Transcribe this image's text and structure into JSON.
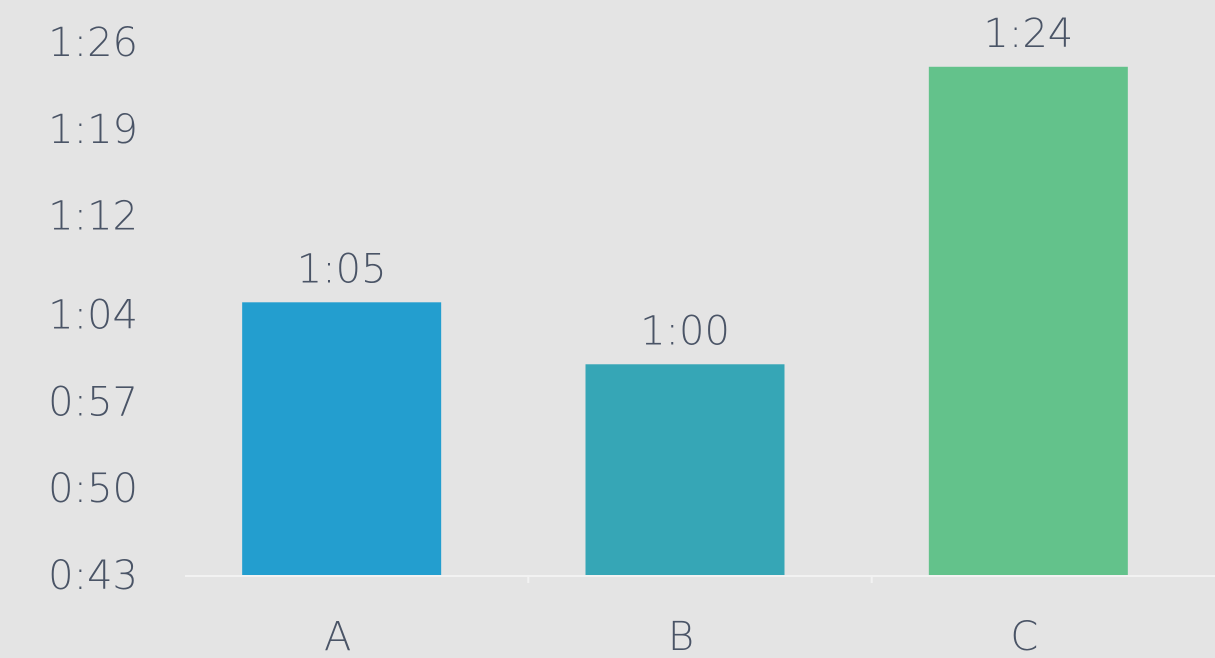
{
  "chart_data": {
    "type": "bar",
    "title": "",
    "xlabel": "",
    "ylabel": "",
    "categories": [
      "A",
      "B",
      "C"
    ],
    "values": [
      65,
      60,
      84
    ],
    "value_labels": [
      "1:05",
      "1:00",
      "1:24"
    ],
    "y_unit": "seconds",
    "ylim": [
      43,
      86
    ],
    "y_ticks": [
      43,
      50,
      57,
      64,
      72,
      79,
      86
    ],
    "y_tick_labels": [
      "0:43",
      "0:50",
      "0:57",
      "1:04",
      "1:12",
      "1:19",
      "1:26"
    ],
    "colors": [
      "#239ecf",
      "#36a6b6",
      "#63c28b"
    ],
    "grid": false,
    "legend": "none"
  },
  "colors": {
    "background": "#e4e4e4",
    "text": "#4a5466",
    "axis_line": "#f2f2f2"
  }
}
